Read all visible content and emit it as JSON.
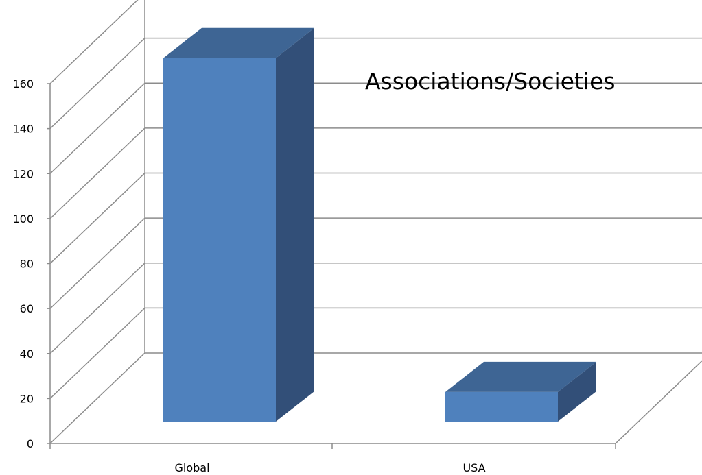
{
  "chart_data": {
    "type": "bar",
    "style": "3d-column",
    "title": "Associations/Societies",
    "categories": [
      "Global",
      "USA"
    ],
    "values": [
      160,
      13
    ],
    "xlabel": "",
    "ylabel": "",
    "ylim": [
      0,
      160
    ],
    "yticks": [
      0,
      20,
      40,
      60,
      80,
      100,
      120,
      140,
      160
    ],
    "grid": true,
    "legend": "none",
    "colors": {
      "bar_front": "#4F81BD",
      "bar_top": "#3E6594",
      "bar_side": "#324F78",
      "gridline": "#8C8C8C"
    }
  }
}
